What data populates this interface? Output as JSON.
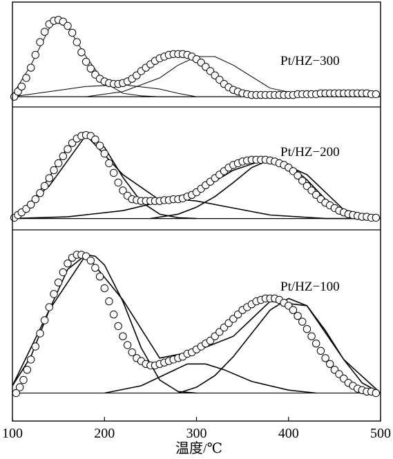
{
  "chart_data": {
    "type": "line",
    "xlabel": "温度/℃",
    "xlim": [
      100,
      500
    ],
    "xticks": [
      100,
      200,
      300,
      400,
      500
    ],
    "yticks": [],
    "grid": false,
    "legend": "none",
    "panels": [
      {
        "label": "Pt/HZ−300",
        "baseline": 0.08,
        "ylim": [
          0,
          1.1
        ],
        "measured": {
          "name": "",
          "marker": "open-circle",
          "x": [
            102,
            106,
            110,
            115,
            120,
            125,
            130,
            135,
            140,
            145,
            150,
            155,
            160,
            165,
            170,
            175,
            180,
            185,
            190,
            195,
            200,
            205,
            210,
            215,
            220,
            225,
            230,
            235,
            240,
            245,
            250,
            255,
            260,
            265,
            270,
            275,
            280,
            285,
            290,
            295,
            300,
            305,
            310,
            315,
            320,
            325,
            330,
            335,
            340,
            345,
            350,
            355,
            360,
            365,
            370,
            375,
            380,
            385,
            390,
            395,
            400,
            405,
            410,
            415,
            420,
            425,
            430,
            435,
            440,
            445,
            450,
            455,
            460,
            465,
            470,
            475,
            480,
            485,
            490,
            495
          ],
          "y": [
            0.08,
            0.14,
            0.2,
            0.3,
            0.42,
            0.57,
            0.72,
            0.84,
            0.93,
            0.97,
            0.98,
            0.96,
            0.91,
            0.83,
            0.72,
            0.6,
            0.49,
            0.41,
            0.34,
            0.29,
            0.26,
            0.24,
            0.23,
            0.23,
            0.24,
            0.26,
            0.29,
            0.33,
            0.38,
            0.42,
            0.46,
            0.5,
            0.53,
            0.55,
            0.57,
            0.58,
            0.58,
            0.58,
            0.57,
            0.55,
            0.52,
            0.48,
            0.43,
            0.38,
            0.33,
            0.28,
            0.23,
            0.19,
            0.16,
            0.14,
            0.12,
            0.11,
            0.1,
            0.1,
            0.1,
            0.1,
            0.1,
            0.1,
            0.1,
            0.1,
            0.1,
            0.1,
            0.11,
            0.11,
            0.11,
            0.11,
            0.11,
            0.12,
            0.12,
            0.12,
            0.12,
            0.12,
            0.12,
            0.12,
            0.12,
            0.12,
            0.12,
            0.12,
            0.11,
            0.11
          ]
        },
        "fits": [
          {
            "name": "",
            "x": [
              100,
              120,
              140,
              150,
              160,
              180,
              200,
              220,
              240,
              260,
              280,
              300
            ],
            "y": [
              0.1,
              0.45,
              0.88,
              0.98,
              0.9,
              0.55,
              0.25,
              0.12,
              0.09,
              0.08,
              0.08,
              0.08
            ]
          },
          {
            "name": "",
            "x": [
              100,
              140,
              180,
              220,
              260,
              280,
              300
            ],
            "y": [
              0.08,
              0.14,
              0.2,
              0.22,
              0.17,
              0.12,
              0.08
            ]
          },
          {
            "name": "",
            "x": [
              180,
              220,
              260,
              280,
              300,
              320,
              340,
              380,
              420,
              460,
              500
            ],
            "y": [
              0.08,
              0.14,
              0.3,
              0.45,
              0.55,
              0.55,
              0.45,
              0.18,
              0.09,
              0.08,
              0.08
            ]
          }
        ]
      },
      {
        "label": "Pt/HZ−200",
        "baseline": 0.05,
        "ylim": [
          0,
          1.1
        ],
        "measured": {
          "name": "",
          "marker": "open-circle",
          "x": [
            102,
            106,
            110,
            115,
            120,
            125,
            130,
            135,
            140,
            145,
            150,
            155,
            160,
            165,
            170,
            175,
            180,
            185,
            190,
            195,
            200,
            205,
            210,
            215,
            220,
            225,
            230,
            235,
            240,
            245,
            250,
            255,
            260,
            265,
            270,
            275,
            280,
            285,
            290,
            295,
            300,
            305,
            310,
            315,
            320,
            325,
            330,
            335,
            340,
            345,
            350,
            355,
            360,
            365,
            370,
            375,
            380,
            385,
            390,
            395,
            400,
            405,
            410,
            415,
            420,
            425,
            430,
            435,
            440,
            445,
            450,
            455,
            460,
            465,
            470,
            475,
            480,
            485,
            490,
            495
          ],
          "y": [
            0.06,
            0.09,
            0.12,
            0.16,
            0.21,
            0.27,
            0.34,
            0.42,
            0.51,
            0.6,
            0.68,
            0.76,
            0.84,
            0.91,
            0.96,
            0.99,
            1.0,
            0.99,
            0.95,
            0.88,
            0.79,
            0.68,
            0.57,
            0.46,
            0.37,
            0.31,
            0.27,
            0.26,
            0.25,
            0.25,
            0.25,
            0.25,
            0.25,
            0.26,
            0.26,
            0.27,
            0.27,
            0.28,
            0.3,
            0.32,
            0.35,
            0.39,
            0.43,
            0.47,
            0.51,
            0.55,
            0.59,
            0.63,
            0.66,
            0.68,
            0.7,
            0.71,
            0.72,
            0.72,
            0.72,
            0.72,
            0.71,
            0.7,
            0.68,
            0.66,
            0.63,
            0.59,
            0.54,
            0.48,
            0.42,
            0.37,
            0.32,
            0.27,
            0.23,
            0.2,
            0.17,
            0.14,
            0.12,
            0.1,
            0.09,
            0.08,
            0.07,
            0.07,
            0.06,
            0.06
          ]
        },
        "fits": [
          {
            "name": "",
            "x": [
              100,
              120,
              140,
              160,
              180,
              200,
              220,
              240,
              260,
              280,
              300
            ],
            "y": [
              0.06,
              0.22,
              0.52,
              0.86,
              1.0,
              0.86,
              0.52,
              0.24,
              0.1,
              0.06,
              0.05
            ]
          },
          {
            "name": "",
            "x": [
              100,
              160,
              220,
              260,
              280,
              300,
              340,
              380,
              440,
              500
            ],
            "y": [
              0.05,
              0.07,
              0.14,
              0.24,
              0.27,
              0.25,
              0.17,
              0.09,
              0.05,
              0.05
            ]
          },
          {
            "name": "",
            "x": [
              250,
              280,
              300,
              320,
              340,
              360,
              380,
              400,
              420,
              440,
              460,
              480,
              500
            ],
            "y": [
              0.05,
              0.1,
              0.18,
              0.3,
              0.46,
              0.63,
              0.72,
              0.67,
              0.49,
              0.27,
              0.12,
              0.06,
              0.05
            ]
          },
          {
            "name": "",
            "x": [
              100,
              140,
              180,
              220,
              260,
              300,
              340,
              380,
              420,
              460,
              500
            ],
            "y": [
              0.06,
              0.42,
              1.0,
              0.55,
              0.26,
              0.35,
              0.6,
              0.74,
              0.55,
              0.15,
              0.05
            ]
          }
        ]
      },
      {
        "label": "Pt/HZ−100",
        "baseline": 0.05,
        "ylim": [
          0,
          1.1
        ],
        "measured": {
          "name": "",
          "marker": "open-circle",
          "x": [
            104,
            108,
            112,
            116,
            120,
            125,
            130,
            135,
            140,
            145,
            150,
            155,
            160,
            165,
            170,
            175,
            180,
            185,
            190,
            195,
            200,
            205,
            210,
            215,
            220,
            225,
            230,
            235,
            240,
            245,
            250,
            255,
            260,
            265,
            270,
            275,
            280,
            285,
            290,
            295,
            300,
            305,
            310,
            315,
            320,
            325,
            330,
            335,
            340,
            345,
            350,
            355,
            360,
            365,
            370,
            375,
            380,
            385,
            390,
            395,
            400,
            405,
            410,
            415,
            420,
            425,
            430,
            435,
            440,
            445,
            450,
            455,
            460,
            465,
            470,
            475,
            480,
            485,
            490,
            495
          ],
          "y": [
            0.05,
            0.09,
            0.14,
            0.21,
            0.28,
            0.37,
            0.46,
            0.55,
            0.64,
            0.73,
            0.81,
            0.88,
            0.94,
            0.98,
            1.0,
            1.0,
            0.99,
            0.96,
            0.91,
            0.85,
            0.77,
            0.68,
            0.59,
            0.51,
            0.44,
            0.38,
            0.33,
            0.29,
            0.27,
            0.25,
            0.24,
            0.24,
            0.25,
            0.26,
            0.27,
            0.28,
            0.29,
            0.3,
            0.32,
            0.33,
            0.35,
            0.37,
            0.39,
            0.41,
            0.44,
            0.47,
            0.5,
            0.53,
            0.56,
            0.59,
            0.62,
            0.64,
            0.66,
            0.68,
            0.69,
            0.7,
            0.7,
            0.7,
            0.69,
            0.67,
            0.65,
            0.62,
            0.58,
            0.54,
            0.49,
            0.44,
            0.39,
            0.34,
            0.29,
            0.25,
            0.21,
            0.18,
            0.15,
            0.12,
            0.1,
            0.08,
            0.07,
            0.06,
            0.06,
            0.05
          ]
        },
        "fits": [
          {
            "name": "",
            "x": [
              100,
              120,
              140,
              160,
              180,
              190,
              200,
              220,
              240,
              260,
              280,
              300
            ],
            "y": [
              0.1,
              0.3,
              0.62,
              0.9,
              1.0,
              0.99,
              0.93,
              0.68,
              0.36,
              0.14,
              0.06,
              0.05
            ]
          },
          {
            "name": "",
            "x": [
              200,
              240,
              270,
              290,
              310,
              330,
              360,
              400,
              430
            ],
            "y": [
              0.05,
              0.1,
              0.19,
              0.25,
              0.25,
              0.21,
              0.13,
              0.07,
              0.05
            ]
          },
          {
            "name": "",
            "x": [
              280,
              300,
              320,
              340,
              360,
              380,
              400,
              420,
              440,
              460,
              480,
              500
            ],
            "y": [
              0.05,
              0.09,
              0.17,
              0.3,
              0.46,
              0.62,
              0.7,
              0.65,
              0.48,
              0.28,
              0.12,
              0.05
            ]
          },
          {
            "name": "",
            "x": [
              100,
              140,
              180,
              220,
              260,
              300,
              340,
              380,
              420,
              460,
              500
            ],
            "y": [
              0.1,
              0.62,
              1.0,
              0.69,
              0.29,
              0.34,
              0.44,
              0.68,
              0.65,
              0.28,
              0.05
            ]
          }
        ]
      }
    ]
  }
}
